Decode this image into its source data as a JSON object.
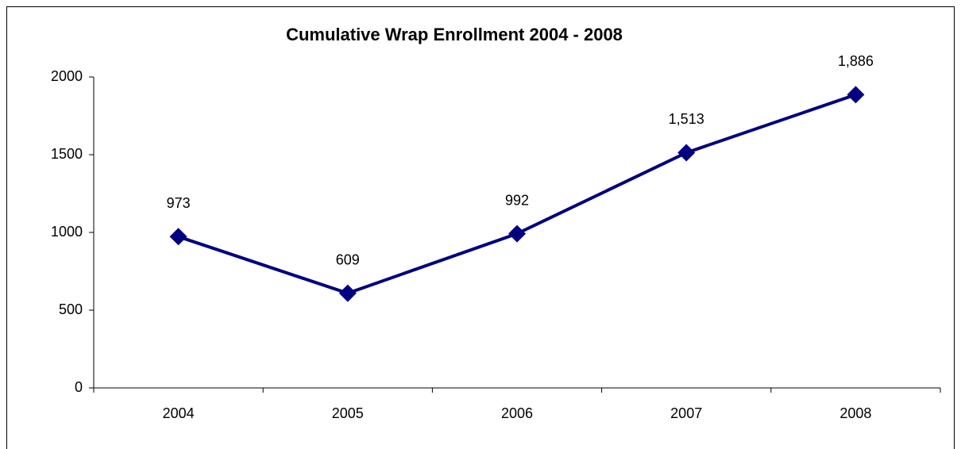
{
  "chart_data": {
    "type": "line",
    "title": "Cumulative Wrap Enrollment  2004 - 2008",
    "categories": [
      "2004",
      "2005",
      "2006",
      "2007",
      "2008"
    ],
    "series": [
      {
        "name": "Enrollment",
        "color": "#000080",
        "values": [
          973,
          609,
          992,
          1513,
          1886
        ],
        "value_labels": [
          "973",
          "609",
          "992",
          "1,513",
          "1,886"
        ]
      }
    ],
    "ylim": [
      0,
      2000
    ],
    "yticks": [
      0,
      500,
      1000,
      1500,
      2000
    ],
    "grid": false,
    "legend": false
  }
}
